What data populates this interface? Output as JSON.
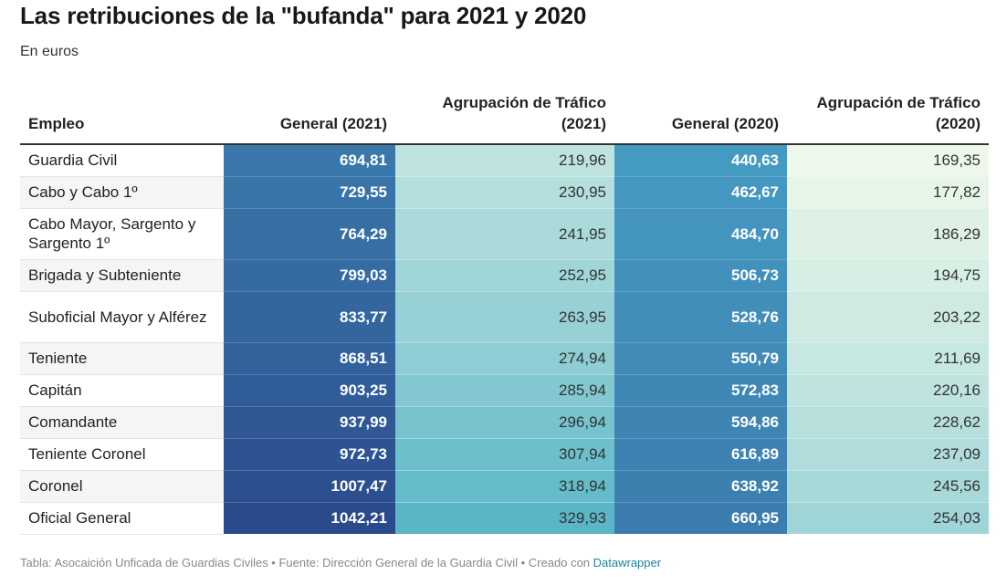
{
  "title": "Las retribuciones de la \"bufanda\" para 2021 y 2020",
  "subtitle": "En euros",
  "chart_data": {
    "type": "table",
    "columns": [
      "Empleo",
      "General (2021)",
      "Agrupación de Tráfico (2021)",
      "General (2020)",
      "Agrupación de Tráfico (2020)"
    ],
    "rows": [
      {
        "empleo": "Guardia Civil",
        "values": [
          "694,81",
          "219,96",
          "440,63",
          "169,35"
        ]
      },
      {
        "empleo": "Cabo y Cabo 1º",
        "values": [
          "729,55",
          "230,95",
          "462,67",
          "177,82"
        ]
      },
      {
        "empleo": "Cabo Mayor, Sargento y Sargento 1º",
        "values": [
          "764,29",
          "241,95",
          "484,70",
          "186,29"
        ]
      },
      {
        "empleo": "Brigada y Subteniente",
        "values": [
          "799,03",
          "252,95",
          "506,73",
          "194,75"
        ]
      },
      {
        "empleo": "Suboficial Mayor y Alférez",
        "values": [
          "833,77",
          "263,95",
          "528,76",
          "203,22"
        ]
      },
      {
        "empleo": "Teniente",
        "values": [
          "868,51",
          "274,94",
          "550,79",
          "211,69"
        ]
      },
      {
        "empleo": "Capitán",
        "values": [
          "903,25",
          "285,94",
          "572,83",
          "220,16"
        ]
      },
      {
        "empleo": "Comandante",
        "values": [
          "937,99",
          "296,94",
          "594,86",
          "228,62"
        ]
      },
      {
        "empleo": "Teniente Coronel",
        "values": [
          "972,73",
          "307,94",
          "616,89",
          "237,09"
        ]
      },
      {
        "empleo": "Coronel",
        "values": [
          "1007,47",
          "318,94",
          "638,92",
          "245,56"
        ]
      },
      {
        "empleo": "Oficial General",
        "values": [
          "1042,21",
          "329,93",
          "660,95",
          "254,03"
        ]
      }
    ],
    "color_scales": {
      "general": [
        "#4aa8cc",
        "#2a4a8c"
      ],
      "trafico": [
        "#eef8ea",
        "#5ab6c7"
      ]
    }
  },
  "footer": {
    "source_text": "Tabla: Asocaición Unficada de Guardias Civiles • Fuente: Dirección General de la Guardia Civil • Creado con ",
    "tool_name": "Datawrapper"
  }
}
